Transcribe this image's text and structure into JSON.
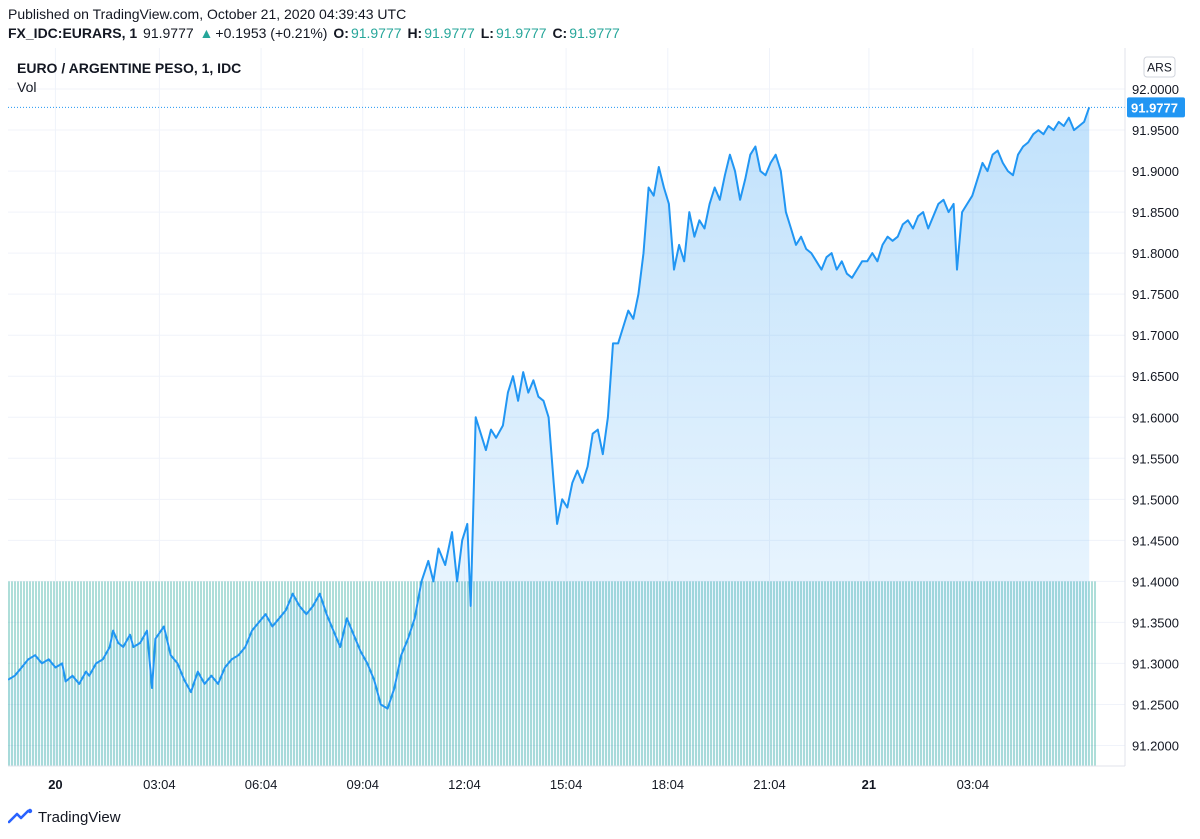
{
  "header": {
    "published": "Published on TradingView.com, October 21, 2020 04:39:43 UTC",
    "symbol": "FX_IDC:EURARS, 1",
    "last": "91.9777",
    "change_arrow": "▲",
    "change": "+0.1953 (+0.21%)",
    "o_label": "O:",
    "o_value": "91.9777",
    "h_label": "H:",
    "h_value": "91.9777",
    "l_label": "L:",
    "l_value": "91.9777",
    "c_label": "C:",
    "c_value": "91.9777"
  },
  "legend": {
    "title": "EURO / ARGENTINE PESO, 1, IDC",
    "vol": "Vol"
  },
  "axis": {
    "currency": "ARS",
    "price_tag": "91.9777"
  },
  "footer": {
    "brand": "TradingView",
    "logo_icon": "tradingview-logo-icon"
  },
  "colors": {
    "line": "#2196f3",
    "volume": "#26a69a",
    "grid": "#f0f3fa",
    "price_tag": "#2196f3"
  },
  "chart_data": {
    "type": "area",
    "title": "EURO / ARGENTINE PESO, 1, IDC",
    "ylim": [
      91.175,
      92.05
    ],
    "y_ticks": [
      "92.0000",
      "91.9500",
      "91.9000",
      "91.8500",
      "91.8000",
      "91.7500",
      "91.7000",
      "91.6500",
      "91.6000",
      "91.5500",
      "91.5000",
      "91.4500",
      "91.4000",
      "91.3500",
      "91.3000",
      "91.2500",
      "91.2000"
    ],
    "x_domain_hours": [
      -1.4,
      30.7
    ],
    "x_ticks": [
      {
        "label": "20",
        "hour": 0,
        "bold": true
      },
      {
        "label": "03:04",
        "hour": 3.0667
      },
      {
        "label": "06:04",
        "hour": 6.0667
      },
      {
        "label": "09:04",
        "hour": 9.0667
      },
      {
        "label": "12:04",
        "hour": 12.0667
      },
      {
        "label": "15:04",
        "hour": 15.0667
      },
      {
        "label": "18:04",
        "hour": 18.0667
      },
      {
        "label": "21:04",
        "hour": 21.0667
      },
      {
        "label": "21",
        "hour": 24,
        "bold": true
      },
      {
        "label": "03:04",
        "hour": 27.0667
      }
    ],
    "volume_baseline_price": 91.4,
    "last_value": 91.9777,
    "points": [
      [
        -1.4,
        91.28
      ],
      [
        -1.2,
        91.285
      ],
      [
        -1.0,
        91.295
      ],
      [
        -0.8,
        91.305
      ],
      [
        -0.6,
        91.31
      ],
      [
        -0.4,
        91.3
      ],
      [
        -0.2,
        91.305
      ],
      [
        0.0,
        91.295
      ],
      [
        0.2,
        91.3
      ],
      [
        0.3,
        91.278
      ],
      [
        0.5,
        91.285
      ],
      [
        0.7,
        91.275
      ],
      [
        0.9,
        91.29
      ],
      [
        1.0,
        91.285
      ],
      [
        1.2,
        91.3
      ],
      [
        1.4,
        91.305
      ],
      [
        1.6,
        91.32
      ],
      [
        1.7,
        91.34
      ],
      [
        1.85,
        91.325
      ],
      [
        2.0,
        91.32
      ],
      [
        2.2,
        91.335
      ],
      [
        2.3,
        91.32
      ],
      [
        2.5,
        91.325
      ],
      [
        2.7,
        91.34
      ],
      [
        2.85,
        91.27
      ],
      [
        2.95,
        91.33
      ],
      [
        3.2,
        91.345
      ],
      [
        3.4,
        91.31
      ],
      [
        3.6,
        91.3
      ],
      [
        3.8,
        91.28
      ],
      [
        4.0,
        91.265
      ],
      [
        4.2,
        91.29
      ],
      [
        4.4,
        91.275
      ],
      [
        4.6,
        91.285
      ],
      [
        4.8,
        91.275
      ],
      [
        5.0,
        91.295
      ],
      [
        5.2,
        91.305
      ],
      [
        5.4,
        91.31
      ],
      [
        5.6,
        91.32
      ],
      [
        5.8,
        91.34
      ],
      [
        6.0,
        91.35
      ],
      [
        6.2,
        91.36
      ],
      [
        6.4,
        91.345
      ],
      [
        6.6,
        91.355
      ],
      [
        6.8,
        91.365
      ],
      [
        7.0,
        91.385
      ],
      [
        7.2,
        91.37
      ],
      [
        7.4,
        91.36
      ],
      [
        7.6,
        91.37
      ],
      [
        7.8,
        91.385
      ],
      [
        8.0,
        91.36
      ],
      [
        8.2,
        91.34
      ],
      [
        8.4,
        91.32
      ],
      [
        8.6,
        91.355
      ],
      [
        8.8,
        91.335
      ],
      [
        9.0,
        91.315
      ],
      [
        9.2,
        91.3
      ],
      [
        9.4,
        91.28
      ],
      [
        9.6,
        91.25
      ],
      [
        9.8,
        91.245
      ],
      [
        10.0,
        91.27
      ],
      [
        10.2,
        91.31
      ],
      [
        10.4,
        91.33
      ],
      [
        10.6,
        91.355
      ],
      [
        10.8,
        91.4
      ],
      [
        11.0,
        91.425
      ],
      [
        11.15,
        91.4
      ],
      [
        11.3,
        91.44
      ],
      [
        11.5,
        91.42
      ],
      [
        11.7,
        91.46
      ],
      [
        11.85,
        91.4
      ],
      [
        12.0,
        91.45
      ],
      [
        12.15,
        91.47
      ],
      [
        12.25,
        91.37
      ],
      [
        12.4,
        91.6
      ],
      [
        12.55,
        91.58
      ],
      [
        12.7,
        91.56
      ],
      [
        12.85,
        91.585
      ],
      [
        13.0,
        91.575
      ],
      [
        13.2,
        91.59
      ],
      [
        13.35,
        91.63
      ],
      [
        13.5,
        91.65
      ],
      [
        13.65,
        91.62
      ],
      [
        13.8,
        91.655
      ],
      [
        13.95,
        91.63
      ],
      [
        14.1,
        91.645
      ],
      [
        14.25,
        91.625
      ],
      [
        14.4,
        91.62
      ],
      [
        14.55,
        91.6
      ],
      [
        14.7,
        91.52
      ],
      [
        14.8,
        91.47
      ],
      [
        14.95,
        91.5
      ],
      [
        15.1,
        91.49
      ],
      [
        15.25,
        91.52
      ],
      [
        15.4,
        91.535
      ],
      [
        15.55,
        91.52
      ],
      [
        15.7,
        91.54
      ],
      [
        15.85,
        91.58
      ],
      [
        16.0,
        91.585
      ],
      [
        16.15,
        91.555
      ],
      [
        16.3,
        91.6
      ],
      [
        16.45,
        91.69
      ],
      [
        16.6,
        91.69
      ],
      [
        16.75,
        91.71
      ],
      [
        16.9,
        91.73
      ],
      [
        17.05,
        91.72
      ],
      [
        17.2,
        91.75
      ],
      [
        17.35,
        91.8
      ],
      [
        17.5,
        91.88
      ],
      [
        17.65,
        91.87
      ],
      [
        17.8,
        91.905
      ],
      [
        17.95,
        91.88
      ],
      [
        18.1,
        91.86
      ],
      [
        18.25,
        91.78
      ],
      [
        18.4,
        91.81
      ],
      [
        18.55,
        91.79
      ],
      [
        18.7,
        91.85
      ],
      [
        18.85,
        91.82
      ],
      [
        19.0,
        91.84
      ],
      [
        19.15,
        91.83
      ],
      [
        19.3,
        91.86
      ],
      [
        19.45,
        91.88
      ],
      [
        19.6,
        91.865
      ],
      [
        19.75,
        91.895
      ],
      [
        19.9,
        91.92
      ],
      [
        20.05,
        91.9
      ],
      [
        20.2,
        91.865
      ],
      [
        20.35,
        91.89
      ],
      [
        20.5,
        91.92
      ],
      [
        20.65,
        91.93
      ],
      [
        20.8,
        91.9
      ],
      [
        20.95,
        91.895
      ],
      [
        21.1,
        91.91
      ],
      [
        21.25,
        91.92
      ],
      [
        21.4,
        91.9
      ],
      [
        21.55,
        91.85
      ],
      [
        21.7,
        91.83
      ],
      [
        21.85,
        91.81
      ],
      [
        22.0,
        91.82
      ],
      [
        22.15,
        91.805
      ],
      [
        22.3,
        91.8
      ],
      [
        22.45,
        91.79
      ],
      [
        22.6,
        91.78
      ],
      [
        22.75,
        91.795
      ],
      [
        22.9,
        91.8
      ],
      [
        23.05,
        91.78
      ],
      [
        23.2,
        91.79
      ],
      [
        23.35,
        91.775
      ],
      [
        23.5,
        91.77
      ],
      [
        23.65,
        91.78
      ],
      [
        23.8,
        91.79
      ],
      [
        23.95,
        91.79
      ],
      [
        24.1,
        91.8
      ],
      [
        24.25,
        91.79
      ],
      [
        24.4,
        91.81
      ],
      [
        24.55,
        91.82
      ],
      [
        24.7,
        91.815
      ],
      [
        24.85,
        91.82
      ],
      [
        25.0,
        91.835
      ],
      [
        25.15,
        91.84
      ],
      [
        25.3,
        91.83
      ],
      [
        25.45,
        91.845
      ],
      [
        25.6,
        91.85
      ],
      [
        25.75,
        91.83
      ],
      [
        25.9,
        91.845
      ],
      [
        26.05,
        91.86
      ],
      [
        26.2,
        91.865
      ],
      [
        26.35,
        91.85
      ],
      [
        26.5,
        91.86
      ],
      [
        26.6,
        91.78
      ],
      [
        26.75,
        91.85
      ],
      [
        26.9,
        91.86
      ],
      [
        27.05,
        91.87
      ],
      [
        27.2,
        91.89
      ],
      [
        27.35,
        91.91
      ],
      [
        27.5,
        91.9
      ],
      [
        27.65,
        91.92
      ],
      [
        27.8,
        91.925
      ],
      [
        27.95,
        91.91
      ],
      [
        28.1,
        91.9
      ],
      [
        28.25,
        91.895
      ],
      [
        28.4,
        91.92
      ],
      [
        28.55,
        91.93
      ],
      [
        28.7,
        91.935
      ],
      [
        28.85,
        91.945
      ],
      [
        29.0,
        91.95
      ],
      [
        29.15,
        91.945
      ],
      [
        29.3,
        91.955
      ],
      [
        29.45,
        91.95
      ],
      [
        29.6,
        91.96
      ],
      [
        29.75,
        91.955
      ],
      [
        29.9,
        91.965
      ],
      [
        30.05,
        91.95
      ],
      [
        30.2,
        91.955
      ],
      [
        30.35,
        91.96
      ],
      [
        30.5,
        91.9777
      ]
    ]
  }
}
